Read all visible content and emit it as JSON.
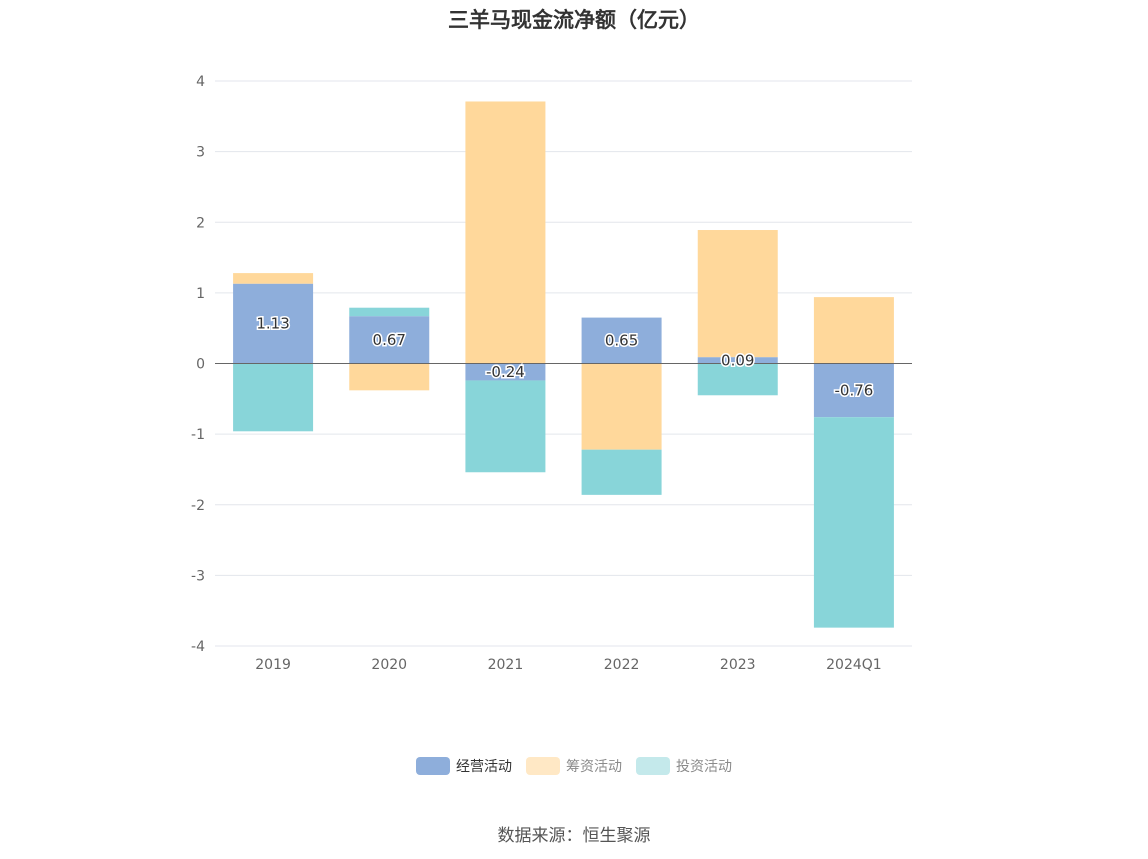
{
  "chart_data": {
    "type": "bar",
    "stacked": true,
    "title": "三羊马现金流净额（亿元）",
    "categories": [
      "2019",
      "2020",
      "2021",
      "2022",
      "2023",
      "2024Q1"
    ],
    "ylim": [
      -4,
      4
    ],
    "yticks": [
      4,
      3,
      2,
      1,
      0,
      -1,
      -2,
      -3,
      -4
    ],
    "grid": true,
    "legend_position": "bottom",
    "series": [
      {
        "name": "经营活动",
        "color": "#8EAEDB",
        "values": [
          1.13,
          0.67,
          -0.24,
          0.65,
          0.09,
          -0.76
        ],
        "labels": [
          "1.13",
          "0.67",
          "-0.24",
          "0.65",
          "0.09",
          "-0.76"
        ]
      },
      {
        "name": "筹资活动",
        "color": "#FFD89B",
        "values": [
          0.15,
          -0.38,
          3.71,
          -1.22,
          1.8,
          0.94
        ]
      },
      {
        "name": "投资活动",
        "color": "#88D5D9",
        "values": [
          -0.96,
          0.12,
          -1.3,
          -0.64,
          -0.45,
          -2.98
        ]
      }
    ]
  },
  "legend": [
    {
      "label": "经营活动",
      "color": "#8EAEDB"
    },
    {
      "label": "筹资活动",
      "color": "#FFE8C5"
    },
    {
      "label": "投资活动",
      "color": "#C4E9EB"
    }
  ],
  "source_text": "数据来源：恒生聚源"
}
